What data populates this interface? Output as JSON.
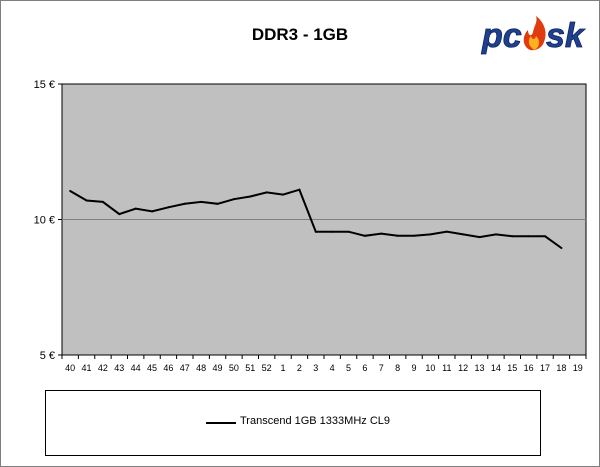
{
  "logo": {
    "text": "pcsk",
    "name": "pcask-logo"
  },
  "colors": {
    "plot_background": "#c0c0c0",
    "line": "#000000",
    "gridline": "#808080"
  },
  "chart_data": {
    "type": "line",
    "title": "DDR3 - 1GB",
    "xlabel": "",
    "ylabel": "",
    "categories": [
      "40",
      "41",
      "42",
      "43",
      "44",
      "45",
      "46",
      "47",
      "48",
      "49",
      "50",
      "51",
      "52",
      "1",
      "2",
      "3",
      "4",
      "5",
      "6",
      "7",
      "8",
      "9",
      "10",
      "11",
      "12",
      "13",
      "14",
      "15",
      "16",
      "17",
      "18",
      "19"
    ],
    "y_ticks": [
      "15 €",
      "10 €",
      "5 €"
    ],
    "y_tick_values": [
      15,
      10,
      5
    ],
    "ylim": [
      5,
      15
    ],
    "grid": true,
    "legend_position": "bottom",
    "series": [
      {
        "name": "Transcend 1GB 1333MHz CL9",
        "values": [
          11.05,
          10.7,
          10.65,
          10.2,
          10.4,
          10.3,
          10.45,
          10.58,
          10.65,
          10.58,
          10.75,
          10.85,
          11.0,
          10.92,
          11.1,
          9.55,
          9.55,
          9.55,
          9.4,
          9.48,
          9.4,
          9.4,
          9.45,
          9.55,
          9.45,
          9.35,
          9.45,
          9.38,
          9.38,
          9.38,
          8.95,
          null
        ]
      }
    ]
  }
}
